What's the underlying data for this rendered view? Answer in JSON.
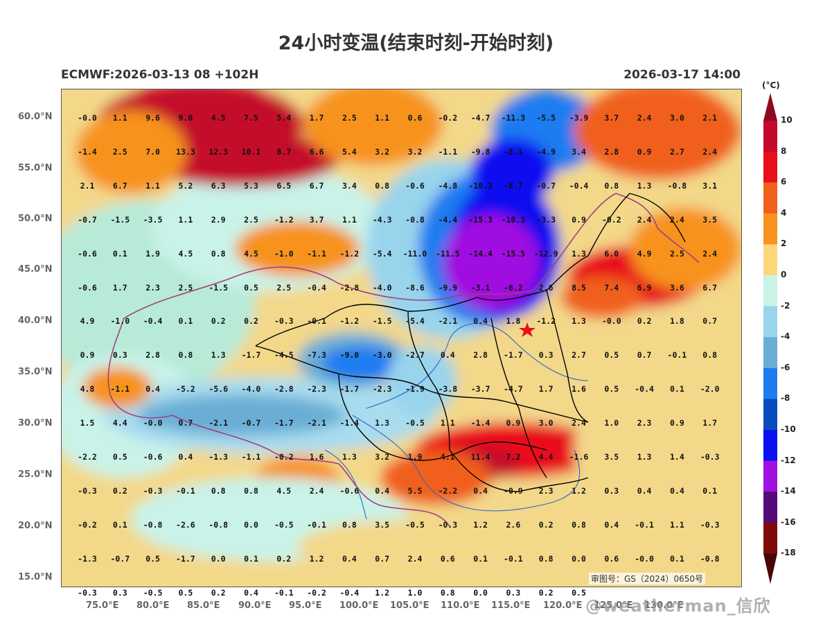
{
  "title": "24小时变温(结束时刻-开始时刻)",
  "model_info": "ECMWF:2026-03-13 08 +102H",
  "valid_time": "2026-03-17 14:00",
  "approval_no": "审图号：GS（2024）0650号",
  "watermark": "@weatherman_信欣",
  "colorbar": {
    "unit": "(°C)",
    "ticks": [
      "10",
      "8",
      "6",
      "4",
      "2",
      "0",
      "-2",
      "-4",
      "-6",
      "-8",
      "-10",
      "-12",
      "-14",
      "-16",
      "-18"
    ],
    "colors": [
      "#8b0a1f",
      "#c40a2a",
      "#e8101a",
      "#f0601a",
      "#f7931e",
      "#fcd77a",
      "#c9f3e8",
      "#98d4ec",
      "#6aaed6",
      "#1f7cf0",
      "#0a4cc0",
      "#0a10f0",
      "#a010e0",
      "#550a7a",
      "#800a0a",
      "#4a0505"
    ]
  },
  "lat_labels": [
    "60.0°N",
    "55.0°N",
    "50.0°N",
    "45.0°N",
    "40.0°N",
    "35.0°N",
    "30.0°N",
    "25.0°N",
    "20.0°N",
    "15.0°N"
  ],
  "lon_labels": [
    "75.0°E",
    "80.0°E",
    "85.0°E",
    "90.0°E",
    "95.0°E",
    "100.0°E",
    "105.0°E",
    "110.0°E",
    "115.0°E",
    "120.0°E",
    "125.0°E",
    "130.0°E"
  ],
  "grid_values": [
    [
      "-0.0",
      "1.1",
      "9.6",
      "9.0",
      "4.5",
      "7.5",
      "5.4",
      "1.7",
      "2.5",
      "1.1",
      "0.6",
      "-0.2",
      "-4.7",
      "-11.3",
      "-5.5",
      "-3.9",
      "3.7",
      "2.4",
      "3.0",
      "2.1"
    ],
    [
      "-1.4",
      "2.5",
      "7.0",
      "13.3",
      "12.3",
      "10.1",
      "8.7",
      "6.6",
      "5.4",
      "3.2",
      "3.2",
      "-1.1",
      "-9.8",
      "-8.1",
      "-4.9",
      "3.4",
      "2.8",
      "0.9",
      "2.7",
      "2.4"
    ],
    [
      "2.1",
      "6.7",
      "1.1",
      "5.2",
      "6.3",
      "5.3",
      "6.5",
      "6.7",
      "3.4",
      "0.8",
      "-0.6",
      "-4.8",
      "-10.3",
      "-8.7",
      "-0.7",
      "-0.4",
      "0.8",
      "1.3",
      "-0.8",
      "3.1"
    ],
    [
      "-0.7",
      "-1.5",
      "-3.5",
      "1.1",
      "2.9",
      "2.5",
      "-1.2",
      "3.7",
      "1.1",
      "-4.3",
      "-0.8",
      "-4.4",
      "-15.3",
      "-10.3",
      "-3.3",
      "0.9",
      "-0.2",
      "2.4",
      "2.4",
      "3.5"
    ],
    [
      "-0.6",
      "0.1",
      "1.9",
      "4.5",
      "0.8",
      "4.5",
      "-1.0",
      "-1.1",
      "-1.2",
      "-5.4",
      "-11.0",
      "-11.5",
      "-14.4",
      "-15.5",
      "-12.9",
      "1.3",
      "6.0",
      "4.9",
      "2.5",
      "2.4"
    ],
    [
      "-0.6",
      "1.7",
      "2.3",
      "2.5",
      "-1.5",
      "0.5",
      "2.5",
      "-0.4",
      "-2.8",
      "-4.0",
      "-8.6",
      "-9.9",
      "-3.1",
      "-6.2",
      "2.6",
      "8.5",
      "7.4",
      "6.9",
      "3.6",
      "6.7"
    ],
    [
      "4.9",
      "-1.0",
      "-0.4",
      "0.1",
      "0.2",
      "0.2",
      "-0.3",
      "-0.1",
      "-1.2",
      "-1.5",
      "-5.4",
      "-2.1",
      "0.4",
      "1.8",
      "-1.2",
      "1.3",
      "-0.0",
      "0.2",
      "1.8",
      "0.7"
    ],
    [
      "0.9",
      "0.3",
      "2.8",
      "0.8",
      "1.3",
      "-1.7",
      "-4.5",
      "-7.3",
      "-9.0",
      "-3.0",
      "-2.7",
      "0.4",
      "2.8",
      "-1.7",
      "0.3",
      "2.7",
      "0.5",
      "0.7",
      "-0.1",
      "0.8"
    ],
    [
      "4.8",
      "-1.1",
      "0.4",
      "-5.2",
      "-5.6",
      "-4.0",
      "-2.8",
      "-2.3",
      "-1.7",
      "-2.3",
      "-1.9",
      "-3.8",
      "-3.7",
      "-4.7",
      "1.7",
      "1.6",
      "0.5",
      "-0.4",
      "0.1",
      "-2.0"
    ],
    [
      "1.5",
      "4.4",
      "-0.0",
      "0.7",
      "-2.1",
      "-0.7",
      "-1.7",
      "-2.1",
      "-1.4",
      "1.3",
      "-0.5",
      "1.1",
      "-1.4",
      "0.9",
      "3.0",
      "2.4",
      "1.0",
      "2.3",
      "0.9",
      "1.7"
    ],
    [
      "-2.2",
      "0.5",
      "-0.6",
      "0.4",
      "-1.3",
      "-1.1",
      "-0.2",
      "1.6",
      "1.3",
      "3.2",
      "1.9",
      "4.1",
      "11.4",
      "7.2",
      "4.4",
      "-1.6",
      "3.5",
      "1.3",
      "1.4",
      "-0.3"
    ],
    [
      "-0.3",
      "0.2",
      "-0.3",
      "-0.1",
      "0.8",
      "0.8",
      "4.5",
      "2.4",
      "-0.6",
      "0.4",
      "5.5",
      "-2.2",
      "0.4",
      "-0.9",
      "2.3",
      "1.2",
      "0.3",
      "0.4",
      "0.4",
      "0.1"
    ],
    [
      "-0.2",
      "0.1",
      "-0.8",
      "-2.6",
      "-0.8",
      "0.0",
      "-0.5",
      "-0.1",
      "0.8",
      "3.5",
      "-0.5",
      "-0.3",
      "1.2",
      "2.6",
      "0.2",
      "0.8",
      "0.4",
      "-0.1",
      "1.1",
      "-0.3"
    ],
    [
      "-1.3",
      "-0.7",
      "0.5",
      "-1.7",
      "0.0",
      "0.1",
      "0.2",
      "1.2",
      "0.4",
      "0.7",
      "2.4",
      "0.6",
      "0.1",
      "-0.1",
      "0.8",
      "0.0",
      "0.6",
      "-0.0",
      "0.1",
      "-0.8"
    ],
    [
      "-0.3",
      "0.3",
      "-0.5",
      "0.5",
      "0.2",
      "0.4",
      "-0.1",
      "-0.2",
      "-0.4",
      "1.2",
      "1.0",
      "0.8",
      "0.0",
      "0.3",
      "0.2",
      "0.5",
      "",
      "",
      "",
      ""
    ]
  ]
}
